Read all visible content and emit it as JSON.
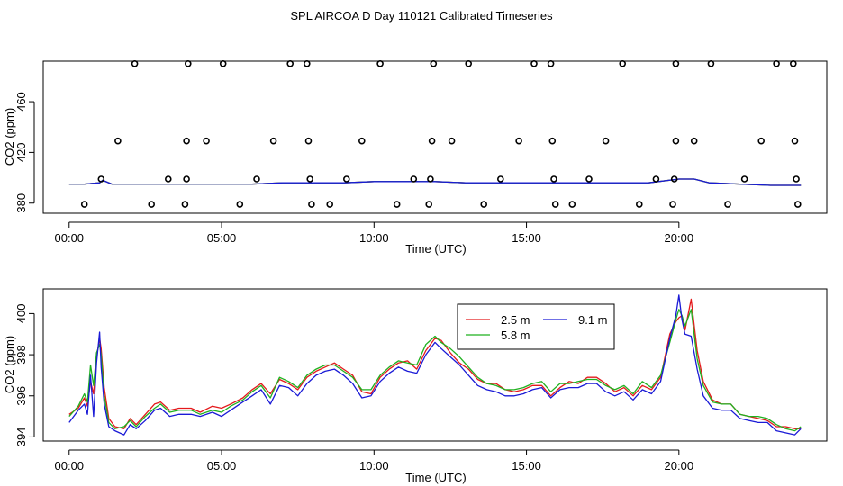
{
  "title": "SPL AIRCOA D  Day 110121  Calibrated Timeseries",
  "colors": {
    "2.5 m": "#e41a1c",
    "5.8 m": "#1fb11f",
    "9.1 m": "#1a1ad6",
    "points": "#000000"
  },
  "chart_data": [
    {
      "type": "scatter",
      "title": "SPL AIRCOA D  Day 110121  Calibrated Timeseries",
      "xlabel": "Time (UTC)",
      "ylabel": "CO2 (ppm)",
      "xlim": [
        -0.85,
        24.85
      ],
      "ylim": [
        372,
        492
      ],
      "x_ticks": [
        0,
        5,
        10,
        15,
        20
      ],
      "x_tick_labels": [
        "00:00",
        "05:00",
        "10:00",
        "15:00",
        "20:00"
      ],
      "y_ticks": [
        380,
        420,
        460
      ],
      "y_tick_labels": [
        "380",
        "420",
        "460"
      ],
      "grid": false,
      "legend": "none",
      "points": [
        {
          "x": 2.15,
          "y": 490
        },
        {
          "x": 3.9,
          "y": 490
        },
        {
          "x": 5.05,
          "y": 490
        },
        {
          "x": 7.25,
          "y": 490
        },
        {
          "x": 7.8,
          "y": 490
        },
        {
          "x": 10.2,
          "y": 490
        },
        {
          "x": 11.95,
          "y": 490
        },
        {
          "x": 13.1,
          "y": 490
        },
        {
          "x": 15.25,
          "y": 490
        },
        {
          "x": 15.8,
          "y": 490
        },
        {
          "x": 18.15,
          "y": 490
        },
        {
          "x": 19.9,
          "y": 490
        },
        {
          "x": 21.05,
          "y": 490
        },
        {
          "x": 23.2,
          "y": 490
        },
        {
          "x": 23.75,
          "y": 490
        },
        {
          "x": 1.6,
          "y": 429
        },
        {
          "x": 3.85,
          "y": 429
        },
        {
          "x": 4.5,
          "y": 429
        },
        {
          "x": 6.7,
          "y": 429
        },
        {
          "x": 7.85,
          "y": 429
        },
        {
          "x": 9.6,
          "y": 429
        },
        {
          "x": 11.9,
          "y": 429
        },
        {
          "x": 12.55,
          "y": 429
        },
        {
          "x": 14.75,
          "y": 429
        },
        {
          "x": 15.85,
          "y": 429
        },
        {
          "x": 17.6,
          "y": 429
        },
        {
          "x": 19.9,
          "y": 429
        },
        {
          "x": 20.5,
          "y": 429
        },
        {
          "x": 22.7,
          "y": 429
        },
        {
          "x": 23.8,
          "y": 429
        },
        {
          "x": 1.05,
          "y": 399
        },
        {
          "x": 3.25,
          "y": 399
        },
        {
          "x": 3.85,
          "y": 399
        },
        {
          "x": 6.15,
          "y": 399
        },
        {
          "x": 7.9,
          "y": 399
        },
        {
          "x": 9.1,
          "y": 399
        },
        {
          "x": 11.3,
          "y": 399
        },
        {
          "x": 11.85,
          "y": 399
        },
        {
          "x": 14.15,
          "y": 399
        },
        {
          "x": 15.9,
          "y": 399
        },
        {
          "x": 17.05,
          "y": 399
        },
        {
          "x": 19.25,
          "y": 399
        },
        {
          "x": 19.85,
          "y": 399
        },
        {
          "x": 22.15,
          "y": 399
        },
        {
          "x": 23.85,
          "y": 399
        },
        {
          "x": 0.5,
          "y": 379
        },
        {
          "x": 2.7,
          "y": 379
        },
        {
          "x": 3.8,
          "y": 379
        },
        {
          "x": 5.6,
          "y": 379
        },
        {
          "x": 7.95,
          "y": 379
        },
        {
          "x": 8.55,
          "y": 379
        },
        {
          "x": 10.75,
          "y": 379
        },
        {
          "x": 11.8,
          "y": 379
        },
        {
          "x": 13.6,
          "y": 379
        },
        {
          "x": 15.95,
          "y": 379
        },
        {
          "x": 16.5,
          "y": 379
        },
        {
          "x": 18.7,
          "y": 379
        },
        {
          "x": 19.8,
          "y": 379
        },
        {
          "x": 21.6,
          "y": 379
        },
        {
          "x": 23.9,
          "y": 379
        }
      ],
      "series": [
        {
          "name": "2.5 m",
          "x": [
            0,
            0.5,
            1,
            1.1,
            1.4,
            2,
            3,
            4,
            5,
            6,
            7,
            8,
            9,
            10,
            11,
            12,
            13,
            14,
            15,
            16,
            17,
            18,
            19,
            20,
            20.5,
            21,
            22,
            23,
            24
          ],
          "values": [
            395,
            395,
            396,
            398,
            395,
            395,
            395,
            395,
            395,
            395,
            396,
            396,
            396,
            397,
            397,
            397,
            396,
            396,
            396,
            396,
            396,
            396,
            396,
            399,
            399,
            396,
            395,
            394,
            394
          ]
        },
        {
          "name": "5.8 m",
          "x": [
            0,
            0.5,
            1,
            1.1,
            1.4,
            2,
            3,
            4,
            5,
            6,
            7,
            8,
            9,
            10,
            11,
            12,
            13,
            14,
            15,
            16,
            17,
            18,
            19,
            20,
            20.5,
            21,
            22,
            23,
            24
          ],
          "values": [
            395,
            395,
            396,
            398,
            395,
            395,
            395,
            395,
            395,
            395,
            396,
            396,
            396,
            397,
            397,
            397,
            396,
            396,
            396,
            396,
            396,
            396,
            396,
            399,
            399,
            396,
            395,
            394,
            394
          ]
        },
        {
          "name": "9.1 m",
          "x": [
            0,
            0.5,
            1,
            1.1,
            1.4,
            2,
            3,
            4,
            5,
            6,
            7,
            8,
            9,
            10,
            11,
            12,
            13,
            14,
            15,
            16,
            17,
            18,
            19,
            20,
            20.5,
            21,
            22,
            23,
            24
          ],
          "values": [
            395,
            395,
            396,
            398,
            395,
            395,
            395,
            395,
            395,
            395,
            396,
            396,
            396,
            397,
            397,
            397,
            396,
            396,
            396,
            396,
            396,
            396,
            396,
            399,
            399,
            396,
            395,
            394,
            394
          ]
        }
      ]
    },
    {
      "type": "line",
      "xlabel": "Time (UTC)",
      "ylabel": "CO2 (ppm)",
      "xlim": [
        -0.85,
        24.85
      ],
      "ylim": [
        393.8,
        401.2
      ],
      "x_ticks": [
        0,
        5,
        10,
        15,
        20
      ],
      "x_tick_labels": [
        "00:00",
        "05:00",
        "10:00",
        "15:00",
        "20:00"
      ],
      "y_ticks": [
        394,
        396,
        398,
        400
      ],
      "y_tick_labels": [
        "394",
        "396",
        "398",
        "400"
      ],
      "grid": false,
      "legend": "top-center",
      "legend_entries": [
        "2.5 m",
        "9.1 m",
        "5.8 m"
      ],
      "series": [
        {
          "name": "2.5 m",
          "x": [
            0,
            0.3,
            0.5,
            0.6,
            0.7,
            0.8,
            0.9,
            1,
            1.05,
            1.15,
            1.3,
            1.5,
            1.8,
            2,
            2.2,
            2.5,
            2.8,
            3,
            3.3,
            3.6,
            4,
            4.3,
            4.7,
            5,
            5.3,
            5.7,
            6,
            6.3,
            6.6,
            6.9,
            7.2,
            7.5,
            7.8,
            8.1,
            8.4,
            8.7,
            9,
            9.3,
            9.6,
            9.9,
            10.2,
            10.5,
            10.8,
            11.1,
            11.4,
            11.7,
            12,
            12.2,
            12.5,
            12.8,
            13.1,
            13.4,
            13.7,
            14,
            14.3,
            14.6,
            14.9,
            15.2,
            15.5,
            15.8,
            16.1,
            16.4,
            16.7,
            17,
            17.3,
            17.6,
            17.9,
            18.2,
            18.5,
            18.8,
            19.1,
            19.4,
            19.7,
            19.9,
            20,
            20.1,
            20.2,
            20.4,
            20.6,
            20.8,
            21.1,
            21.4,
            21.7,
            22,
            22.3,
            22.6,
            22.9,
            23.2,
            23.5,
            23.8,
            24
          ],
          "values": [
            395.1,
            395.4,
            395.9,
            395.5,
            396.7,
            396.1,
            397.9,
            398.8,
            398.3,
            396.4,
            394.9,
            394.5,
            394.4,
            394.9,
            394.6,
            395.1,
            395.6,
            395.7,
            395.3,
            395.4,
            395.4,
            395.2,
            395.5,
            395.4,
            395.6,
            395.9,
            396.3,
            396.6,
            396.1,
            396.8,
            396.6,
            396.3,
            396.9,
            397.2,
            397.4,
            397.6,
            397.3,
            397.0,
            396.2,
            396.1,
            396.9,
            397.3,
            397.6,
            397.7,
            397.3,
            398.2,
            398.8,
            398.7,
            398.1,
            397.6,
            397.3,
            396.8,
            396.6,
            396.6,
            396.3,
            396.2,
            396.3,
            396.5,
            396.5,
            396.0,
            396.4,
            396.7,
            396.6,
            396.9,
            396.9,
            396.6,
            396.2,
            396.4,
            396.0,
            396.5,
            396.3,
            396.9,
            399.0,
            399.6,
            399.8,
            399.9,
            399.2,
            400.7,
            398.2,
            396.7,
            395.8,
            395.6,
            395.6,
            395.1,
            395.0,
            394.9,
            394.8,
            394.5,
            394.5,
            394.4,
            394.4
          ]
        },
        {
          "name": "5.8 m",
          "x": [
            0,
            0.3,
            0.5,
            0.6,
            0.7,
            0.8,
            0.9,
            1,
            1.05,
            1.15,
            1.3,
            1.5,
            1.8,
            2,
            2.2,
            2.5,
            2.8,
            3,
            3.3,
            3.6,
            4,
            4.3,
            4.7,
            5,
            5.3,
            5.7,
            6,
            6.3,
            6.6,
            6.9,
            7.2,
            7.5,
            7.8,
            8.1,
            8.4,
            8.7,
            9,
            9.3,
            9.6,
            9.9,
            10.2,
            10.5,
            10.8,
            11.1,
            11.4,
            11.7,
            12,
            12.2,
            12.5,
            12.8,
            13.1,
            13.4,
            13.7,
            14,
            14.3,
            14.6,
            14.9,
            15.2,
            15.5,
            15.8,
            16.1,
            16.4,
            16.7,
            17,
            17.3,
            17.6,
            17.9,
            18.2,
            18.5,
            18.8,
            19.1,
            19.4,
            19.7,
            19.9,
            20,
            20.1,
            20.2,
            20.4,
            20.6,
            20.8,
            21.1,
            21.4,
            21.7,
            22,
            22.3,
            22.6,
            22.9,
            23.2,
            23.5,
            23.8,
            24
          ],
          "values": [
            395.0,
            395.5,
            396.1,
            395.7,
            397.5,
            396.5,
            398.1,
            398.5,
            398.0,
            396.0,
            394.7,
            394.4,
            394.5,
            394.8,
            394.5,
            395.0,
            395.4,
            395.6,
            395.2,
            395.3,
            395.3,
            395.1,
            395.3,
            395.2,
            395.5,
            395.8,
            396.2,
            396.5,
            395.9,
            396.9,
            396.7,
            396.4,
            397.0,
            397.3,
            397.5,
            397.5,
            397.2,
            396.9,
            396.3,
            396.3,
            397.0,
            397.4,
            397.7,
            397.6,
            397.5,
            398.5,
            398.9,
            398.6,
            398.3,
            397.9,
            397.4,
            396.9,
            396.6,
            396.5,
            396.3,
            396.3,
            396.4,
            396.6,
            396.7,
            396.2,
            396.6,
            396.6,
            396.7,
            396.8,
            396.8,
            396.5,
            396.3,
            396.5,
            396.1,
            396.7,
            396.4,
            397.0,
            398.6,
            399.7,
            400.2,
            399.9,
            399.4,
            400.2,
            397.8,
            396.5,
            395.7,
            395.6,
            395.6,
            395.1,
            395.0,
            395.0,
            394.9,
            394.6,
            394.4,
            394.3,
            394.5
          ]
        },
        {
          "name": "9.1 m",
          "x": [
            0,
            0.3,
            0.5,
            0.6,
            0.7,
            0.8,
            0.9,
            1,
            1.05,
            1.15,
            1.3,
            1.5,
            1.8,
            2,
            2.2,
            2.5,
            2.8,
            3,
            3.3,
            3.6,
            4,
            4.3,
            4.7,
            5,
            5.3,
            5.7,
            6,
            6.3,
            6.6,
            6.9,
            7.2,
            7.5,
            7.8,
            8.1,
            8.4,
            8.7,
            9,
            9.3,
            9.6,
            9.9,
            10.2,
            10.5,
            10.8,
            11.1,
            11.4,
            11.7,
            12,
            12.2,
            12.5,
            12.8,
            13.1,
            13.4,
            13.7,
            14,
            14.3,
            14.6,
            14.9,
            15.2,
            15.5,
            15.8,
            16.1,
            16.4,
            16.7,
            17,
            17.3,
            17.6,
            17.9,
            18.2,
            18.5,
            18.8,
            19.1,
            19.4,
            19.7,
            19.9,
            20,
            20.1,
            20.2,
            20.4,
            20.6,
            20.8,
            21.1,
            21.4,
            21.7,
            22,
            22.3,
            22.6,
            22.9,
            23.2,
            23.5,
            23.8,
            24
          ],
          "values": [
            394.7,
            395.3,
            395.6,
            395.1,
            397.0,
            395.0,
            397.6,
            399.1,
            397.4,
            395.6,
            394.5,
            394.3,
            394.1,
            394.6,
            394.4,
            394.8,
            395.3,
            395.4,
            395.0,
            395.1,
            395.1,
            395.0,
            395.2,
            395.0,
            395.3,
            395.7,
            396.0,
            396.3,
            395.6,
            396.5,
            396.4,
            396.0,
            396.6,
            397.0,
            397.2,
            397.3,
            397.0,
            396.6,
            395.9,
            396.0,
            396.7,
            397.1,
            397.4,
            397.2,
            397.1,
            398.0,
            398.6,
            398.3,
            397.9,
            397.5,
            397.0,
            396.5,
            396.3,
            396.2,
            396.0,
            396.0,
            396.1,
            396.3,
            396.4,
            395.9,
            396.3,
            396.4,
            396.4,
            396.6,
            396.6,
            396.2,
            396.0,
            396.2,
            395.8,
            396.3,
            396.1,
            396.7,
            398.8,
            399.9,
            400.9,
            399.7,
            399.0,
            398.9,
            397.3,
            396.0,
            395.4,
            395.3,
            395.3,
            394.9,
            394.8,
            394.7,
            394.7,
            394.3,
            394.2,
            394.1,
            394.4
          ]
        }
      ]
    }
  ]
}
